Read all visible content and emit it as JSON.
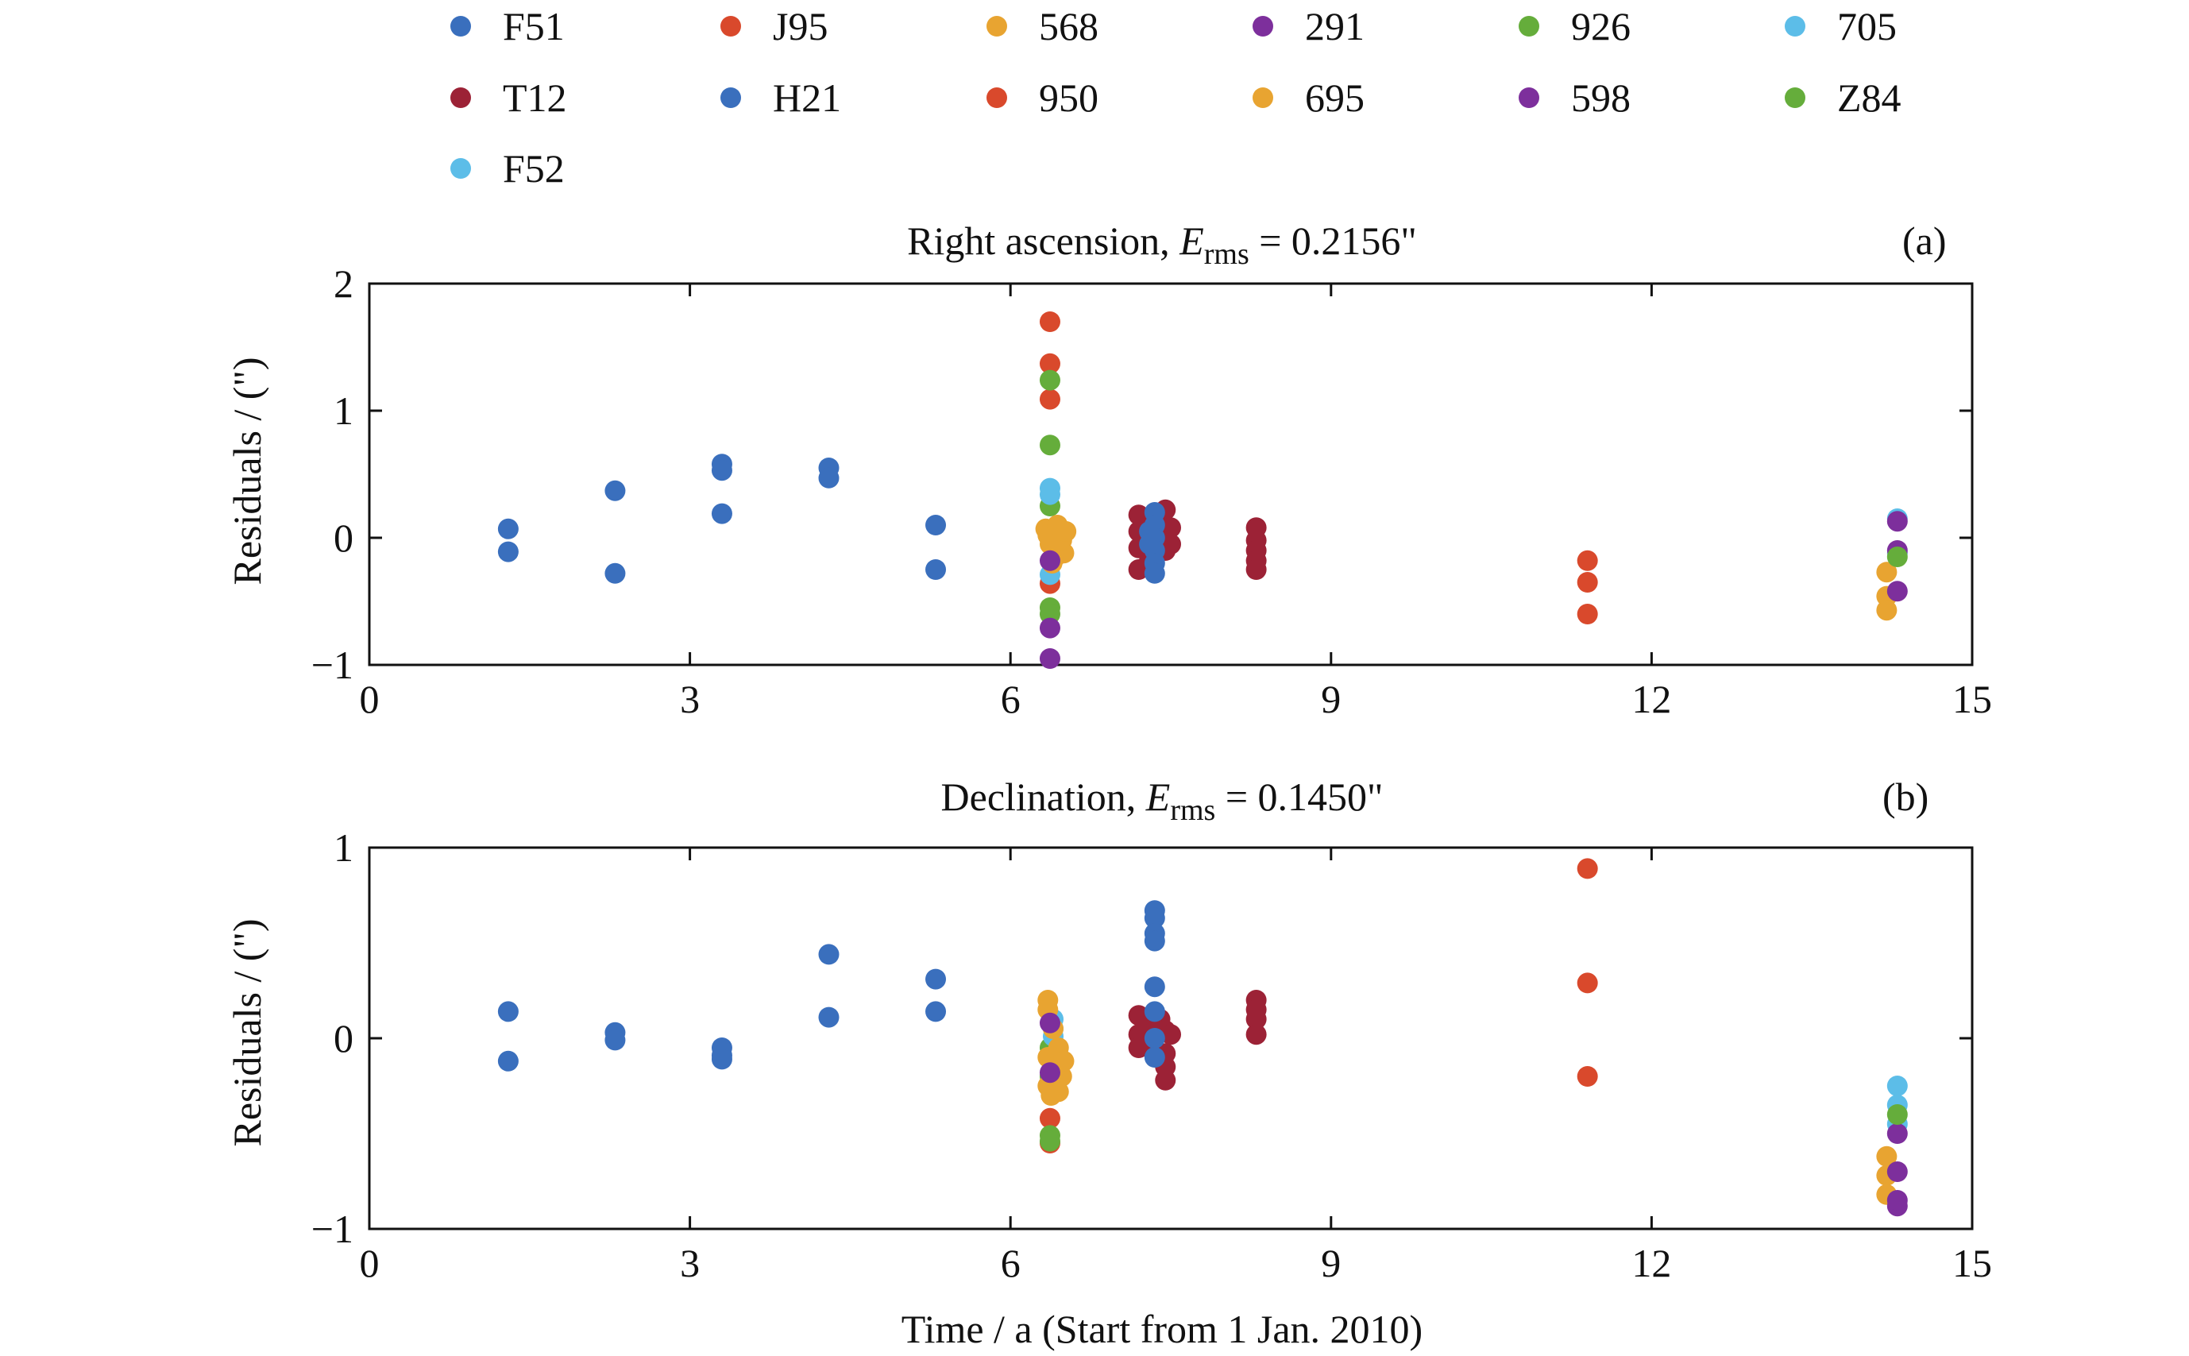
{
  "legend": {
    "entries": [
      {
        "label": "F51",
        "color": "#3a6fbd"
      },
      {
        "label": "J95",
        "color": "#d9492c"
      },
      {
        "label": "568",
        "color": "#e8a431"
      },
      {
        "label": "291",
        "color": "#7d2f9c"
      },
      {
        "label": "926",
        "color": "#65ad3b"
      },
      {
        "label": "705",
        "color": "#5cbde8"
      },
      {
        "label": "T12",
        "color": "#9c2236"
      },
      {
        "label": "H21",
        "color": "#3a6fbd"
      },
      {
        "label": "950",
        "color": "#d9492c"
      },
      {
        "label": "695",
        "color": "#e8a431"
      },
      {
        "label": "598",
        "color": "#7d2f9c"
      },
      {
        "label": "Z84",
        "color": "#65ad3b"
      },
      {
        "label": "F52",
        "color": "#5cbde8"
      }
    ]
  },
  "xlabel": "Time / a (Start from 1 Jan. 2010)",
  "chart_data": [
    {
      "type": "scatter",
      "panel_tag": "(a)",
      "title_prefix": "Right ascension, ",
      "title_symbol": "E",
      "title_subscript": "rms",
      "title_suffix": " = 0.2156\"",
      "ylabel": "Residuals / (\")",
      "xlim": [
        0,
        15
      ],
      "ylim": [
        -1,
        2
      ],
      "xticks": [
        0,
        3,
        6,
        9,
        12,
        15
      ],
      "yticks": [
        -1,
        0,
        1,
        2
      ],
      "xtick_labels": [
        "0",
        "3",
        "6",
        "9",
        "12",
        "15"
      ],
      "ytick_labels": [
        "−1",
        "0",
        "1",
        "2"
      ],
      "series": [
        {
          "name": "F51",
          "color": "#3a6fbd",
          "points": [
            [
              1.3,
              0.07
            ],
            [
              1.3,
              -0.11
            ],
            [
              2.3,
              0.37
            ],
            [
              2.3,
              -0.28
            ],
            [
              3.3,
              0.58
            ],
            [
              3.3,
              0.53
            ],
            [
              3.3,
              0.19
            ],
            [
              4.3,
              0.55
            ],
            [
              4.3,
              0.47
            ],
            [
              5.3,
              0.1
            ],
            [
              5.3,
              -0.25
            ]
          ]
        },
        {
          "name": "J95",
          "color": "#d9492c",
          "points": [
            [
              6.37,
              1.7
            ],
            [
              6.37,
              1.37
            ],
            [
              6.37,
              1.09
            ],
            [
              6.37,
              -0.36
            ]
          ]
        },
        {
          "name": "950",
          "color": "#d9492c",
          "points": [
            [
              11.4,
              -0.18
            ],
            [
              11.4,
              -0.35
            ],
            [
              11.4,
              -0.6
            ]
          ]
        },
        {
          "name": "926",
          "color": "#65ad3b",
          "points": [
            [
              6.37,
              1.24
            ],
            [
              6.37,
              0.73
            ],
            [
              6.37,
              0.25
            ],
            [
              6.37,
              -0.55
            ],
            [
              6.37,
              -0.6
            ]
          ]
        },
        {
          "name": "705",
          "color": "#5cbde8",
          "points": [
            [
              6.37,
              0.39
            ],
            [
              6.37,
              0.34
            ],
            [
              6.37,
              -0.29
            ],
            [
              14.3,
              0.15
            ],
            [
              14.3,
              -0.12
            ]
          ]
        },
        {
          "name": "568",
          "color": "#e8a431",
          "points": [
            [
              6.33,
              0.07
            ],
            [
              6.37,
              -0.05
            ],
            [
              6.42,
              -0.15
            ],
            [
              6.46,
              0.06
            ],
            [
              6.5,
              -0.12
            ],
            [
              6.35,
              0.02
            ],
            [
              6.44,
              0.1
            ],
            [
              6.48,
              -0.02
            ],
            [
              6.39,
              -0.2
            ],
            [
              6.52,
              0.05
            ]
          ]
        },
        {
          "name": "291",
          "color": "#7d2f9c",
          "points": [
            [
              6.37,
              -0.18
            ],
            [
              6.37,
              -0.71
            ],
            [
              6.37,
              -0.95
            ]
          ]
        },
        {
          "name": "T12",
          "color": "#9c2236",
          "points": [
            [
              7.2,
              0.18
            ],
            [
              7.2,
              0.05
            ],
            [
              7.2,
              -0.08
            ],
            [
              7.2,
              -0.25
            ],
            [
              7.3,
              0.12
            ],
            [
              7.3,
              -0.18
            ],
            [
              7.4,
              0.15
            ],
            [
              7.45,
              0.22
            ],
            [
              7.45,
              0.02
            ],
            [
              7.45,
              -0.1
            ],
            [
              7.5,
              0.08
            ],
            [
              7.5,
              -0.05
            ],
            [
              8.3,
              0.08
            ],
            [
              8.3,
              -0.02
            ],
            [
              8.3,
              -0.1
            ],
            [
              8.3,
              -0.18
            ],
            [
              8.3,
              -0.25
            ]
          ]
        },
        {
          "name": "H21",
          "color": "#3a6fbd",
          "points": [
            [
              7.35,
              0.2
            ],
            [
              7.35,
              0.1
            ],
            [
              7.35,
              0.0
            ],
            [
              7.35,
              -0.1
            ],
            [
              7.35,
              -0.2
            ],
            [
              7.35,
              -0.28
            ],
            [
              7.3,
              0.05
            ],
            [
              7.3,
              -0.05
            ]
          ]
        },
        {
          "name": "695",
          "color": "#e8a431",
          "points": [
            [
              14.2,
              -0.27
            ],
            [
              14.2,
              -0.46
            ],
            [
              14.2,
              -0.57
            ]
          ]
        },
        {
          "name": "598",
          "color": "#7d2f9c",
          "points": [
            [
              14.3,
              0.13
            ],
            [
              14.3,
              -0.1
            ],
            [
              14.3,
              -0.42
            ]
          ]
        },
        {
          "name": "Z84",
          "color": "#65ad3b",
          "points": [
            [
              14.3,
              -0.15
            ]
          ]
        }
      ]
    },
    {
      "type": "scatter",
      "panel_tag": "(b)",
      "title_prefix": "Declination, ",
      "title_symbol": "E",
      "title_subscript": "rms",
      "title_suffix": " = 0.1450\"",
      "ylabel": "Residuals / (\")",
      "xlim": [
        0,
        15
      ],
      "ylim": [
        -1,
        1
      ],
      "xticks": [
        0,
        3,
        6,
        9,
        12,
        15
      ],
      "yticks": [
        -1,
        0,
        1
      ],
      "xtick_labels": [
        "0",
        "3",
        "6",
        "9",
        "12",
        "15"
      ],
      "ytick_labels": [
        "−1",
        "0",
        "1"
      ],
      "series": [
        {
          "name": "F51",
          "color": "#3a6fbd",
          "points": [
            [
              1.3,
              0.14
            ],
            [
              1.3,
              -0.12
            ],
            [
              2.3,
              0.03
            ],
            [
              2.3,
              -0.01
            ],
            [
              3.3,
              -0.05
            ],
            [
              3.3,
              -0.09
            ],
            [
              3.3,
              -0.11
            ],
            [
              4.3,
              0.44
            ],
            [
              4.3,
              0.11
            ],
            [
              5.3,
              0.31
            ],
            [
              5.3,
              0.14
            ]
          ]
        },
        {
          "name": "J95",
          "color": "#d9492c",
          "points": [
            [
              6.37,
              -0.42
            ],
            [
              6.37,
              -0.55
            ]
          ]
        },
        {
          "name": "950",
          "color": "#d9492c",
          "points": [
            [
              11.4,
              0.89
            ],
            [
              11.4,
              0.29
            ],
            [
              11.4,
              -0.2
            ]
          ]
        },
        {
          "name": "926",
          "color": "#65ad3b",
          "points": [
            [
              6.37,
              -0.2
            ],
            [
              6.37,
              -0.51
            ],
            [
              6.37,
              -0.54
            ],
            [
              6.37,
              -0.05
            ]
          ]
        },
        {
          "name": "705",
          "color": "#5cbde8",
          "points": [
            [
              6.4,
              0.1
            ],
            [
              6.4,
              0.05
            ],
            [
              6.4,
              0.01
            ],
            [
              14.3,
              -0.25
            ],
            [
              14.3,
              -0.35
            ],
            [
              14.3,
              -0.45
            ]
          ]
        },
        {
          "name": "568",
          "color": "#e8a431",
          "points": [
            [
              6.35,
              0.2
            ],
            [
              6.35,
              0.15
            ],
            [
              6.35,
              -0.1
            ],
            [
              6.35,
              -0.25
            ],
            [
              6.4,
              0.05
            ],
            [
              6.42,
              -0.15
            ],
            [
              6.45,
              -0.05
            ],
            [
              6.45,
              -0.28
            ],
            [
              6.48,
              -0.2
            ],
            [
              6.38,
              -0.3
            ],
            [
              6.5,
              -0.12
            ]
          ]
        },
        {
          "name": "291",
          "color": "#7d2f9c",
          "points": [
            [
              6.37,
              -0.18
            ],
            [
              6.37,
              0.08
            ]
          ]
        },
        {
          "name": "T12",
          "color": "#9c2236",
          "points": [
            [
              7.2,
              0.12
            ],
            [
              7.2,
              0.02
            ],
            [
              7.2,
              -0.05
            ],
            [
              7.3,
              0.08
            ],
            [
              7.3,
              -0.02
            ],
            [
              7.4,
              0.1
            ],
            [
              7.45,
              0.04
            ],
            [
              7.45,
              -0.08
            ],
            [
              7.45,
              -0.15
            ],
            [
              7.45,
              -0.22
            ],
            [
              7.5,
              0.02
            ],
            [
              8.3,
              0.2
            ],
            [
              8.3,
              0.15
            ],
            [
              8.3,
              0.1
            ],
            [
              8.3,
              0.02
            ]
          ]
        },
        {
          "name": "H21",
          "color": "#3a6fbd",
          "points": [
            [
              7.35,
              0.67
            ],
            [
              7.35,
              0.63
            ],
            [
              7.35,
              0.55
            ],
            [
              7.35,
              0.51
            ],
            [
              7.35,
              0.27
            ],
            [
              7.35,
              0.14
            ],
            [
              7.35,
              0.0
            ],
            [
              7.35,
              -0.1
            ]
          ]
        },
        {
          "name": "695",
          "color": "#e8a431",
          "points": [
            [
              14.2,
              -0.62
            ],
            [
              14.2,
              -0.72
            ],
            [
              14.2,
              -0.82
            ]
          ]
        },
        {
          "name": "598",
          "color": "#7d2f9c",
          "points": [
            [
              14.3,
              -0.5
            ],
            [
              14.3,
              -0.7
            ],
            [
              14.3,
              -0.88
            ],
            [
              14.3,
              -0.85
            ]
          ]
        },
        {
          "name": "Z84",
          "color": "#65ad3b",
          "points": [
            [
              14.3,
              -0.4
            ]
          ]
        }
      ]
    }
  ]
}
